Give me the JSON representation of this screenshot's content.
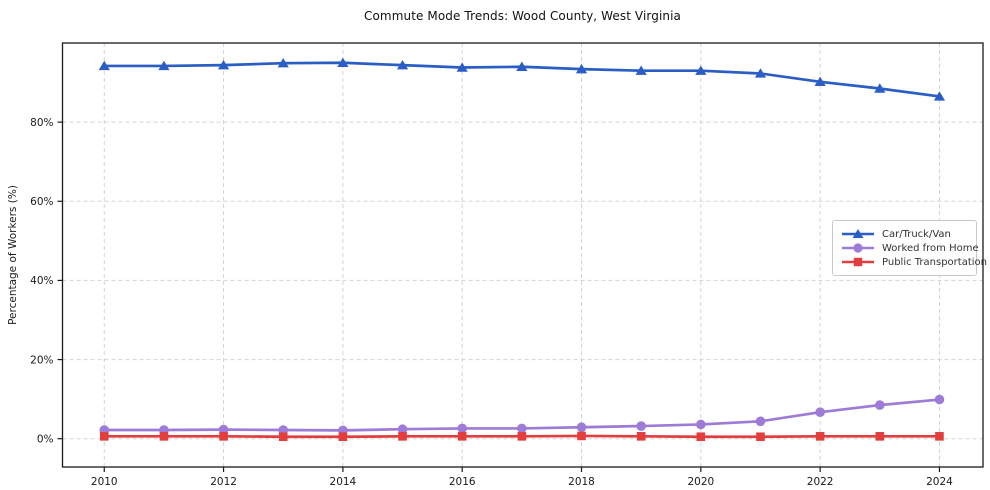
{
  "chart_data": {
    "type": "line",
    "title": "Commute Mode Trends: Wood County, West Virginia",
    "ylabel": "Percentage of Workers (%)",
    "xlabel": "",
    "x": [
      2010,
      2011,
      2012,
      2013,
      2014,
      2015,
      2016,
      2017,
      2018,
      2019,
      2020,
      2021,
      2022,
      2023,
      2024
    ],
    "series": [
      {
        "name": "Car/Truck/Van",
        "marker": "triangle",
        "color": "#2b5ec4",
        "values": [
          94.2,
          94.2,
          94.4,
          94.9,
          95.0,
          94.4,
          93.8,
          94.0,
          93.4,
          93.0,
          93.0,
          92.3,
          90.2,
          88.5,
          86.5
        ]
      },
      {
        "name": "Worked from Home",
        "marker": "circle",
        "color": "#9d7bd6",
        "values": [
          2.2,
          2.2,
          2.3,
          2.2,
          2.1,
          2.4,
          2.6,
          2.6,
          2.9,
          3.2,
          3.6,
          4.4,
          6.7,
          8.5,
          9.9
        ]
      },
      {
        "name": "Public Transportation",
        "marker": "square",
        "color": "#e23e3e",
        "values": [
          0.6,
          0.6,
          0.6,
          0.5,
          0.5,
          0.6,
          0.6,
          0.6,
          0.7,
          0.6,
          0.5,
          0.5,
          0.6,
          0.6,
          0.6
        ]
      }
    ],
    "xticks": [
      2010,
      2012,
      2014,
      2016,
      2018,
      2020,
      2022,
      2024
    ],
    "yticks": [
      0,
      20,
      40,
      60,
      80
    ],
    "ytick_suffix": "%",
    "xlim": [
      2009.3,
      2024.73
    ],
    "ylim": [
      -7.15,
      100.0
    ],
    "grid": true,
    "grid_style": "dashed",
    "legend_position": "center right"
  },
  "colors": {
    "background": "#ffffff",
    "grid": "#d3d3d3",
    "spine": "#1a1a1a",
    "tick_text": "#1a1a1a",
    "title_text": "#111111",
    "legend_border": "#c9c9c9"
  }
}
